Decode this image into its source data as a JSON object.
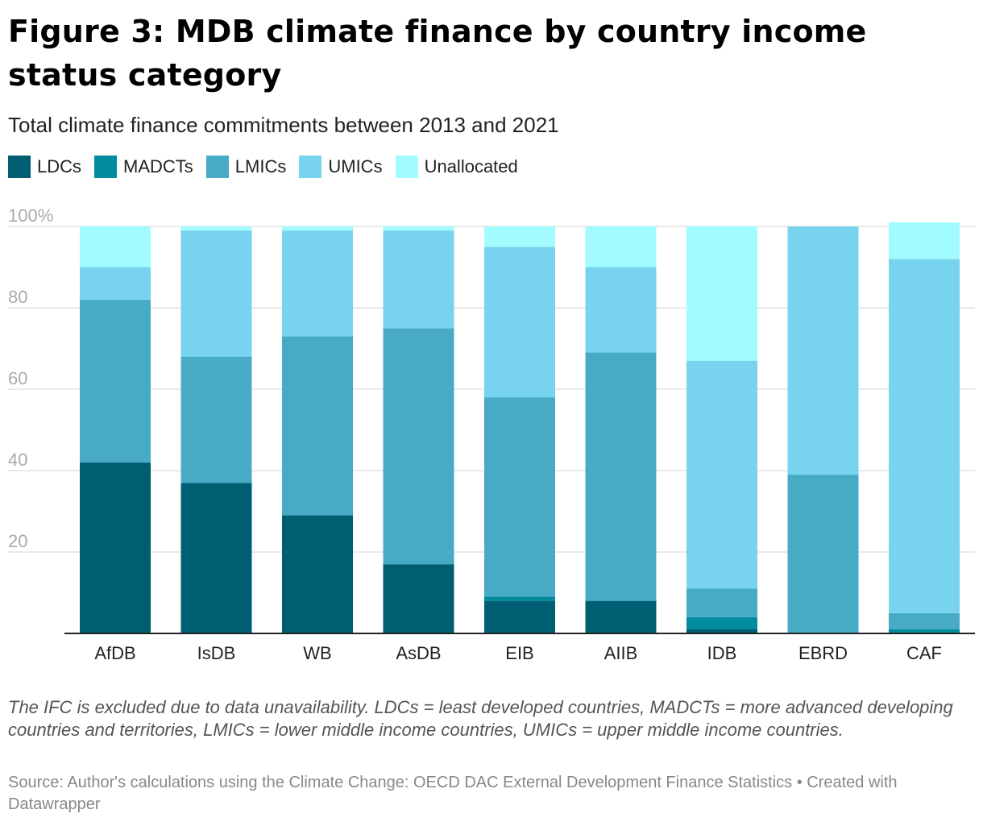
{
  "title": "Figure 3: MDB climate finance by country income status category",
  "subtitle": "Total climate finance commitments between 2013 and 2021",
  "colors": {
    "LDCs": "#005e73",
    "MADCTs": "#008b9f",
    "LMICs": "#48abc5",
    "UMICs": "#77d3ee",
    "Unallocated": "#a2fcff"
  },
  "chart_data": {
    "type": "bar",
    "stacked": true,
    "categories": [
      "AfDB",
      "IsDB",
      "WB",
      "AsDB",
      "EIB",
      "AIIB",
      "IDB",
      "EBRD",
      "CAF"
    ],
    "series": [
      {
        "name": "LDCs",
        "values": [
          42,
          37,
          29,
          17,
          8,
          8,
          1,
          0,
          0
        ]
      },
      {
        "name": "MADCTs",
        "values": [
          0,
          0,
          0,
          0,
          1,
          0,
          3,
          0,
          1
        ]
      },
      {
        "name": "LMICs",
        "values": [
          40,
          31,
          44,
          58,
          49,
          61,
          7,
          39,
          4
        ]
      },
      {
        "name": "UMICs",
        "values": [
          8,
          31,
          26,
          24,
          37,
          21,
          56,
          61,
          87
        ]
      },
      {
        "name": "Unallocated",
        "values": [
          10,
          1,
          1,
          1,
          5,
          10,
          33,
          0,
          9
        ]
      }
    ],
    "ylim": [
      0,
      100
    ],
    "yticks": [
      {
        "value": 20,
        "label": "20"
      },
      {
        "value": 40,
        "label": "40"
      },
      {
        "value": 60,
        "label": "60"
      },
      {
        "value": 80,
        "label": "80"
      },
      {
        "value": 100,
        "label": "100%"
      }
    ],
    "grid": true,
    "legend_position": "top-left"
  },
  "notes": "The IFC is excluded due to data unavailability. LDCs = least developed countries, MADCTs = more advanced developing countries and territories, LMICs = lower middle income countries, UMICs = upper middle income countries.",
  "source": "Source: Author's calculations using the Climate Change: OECD DAC External Development Finance Statistics • Created with Datawrapper"
}
